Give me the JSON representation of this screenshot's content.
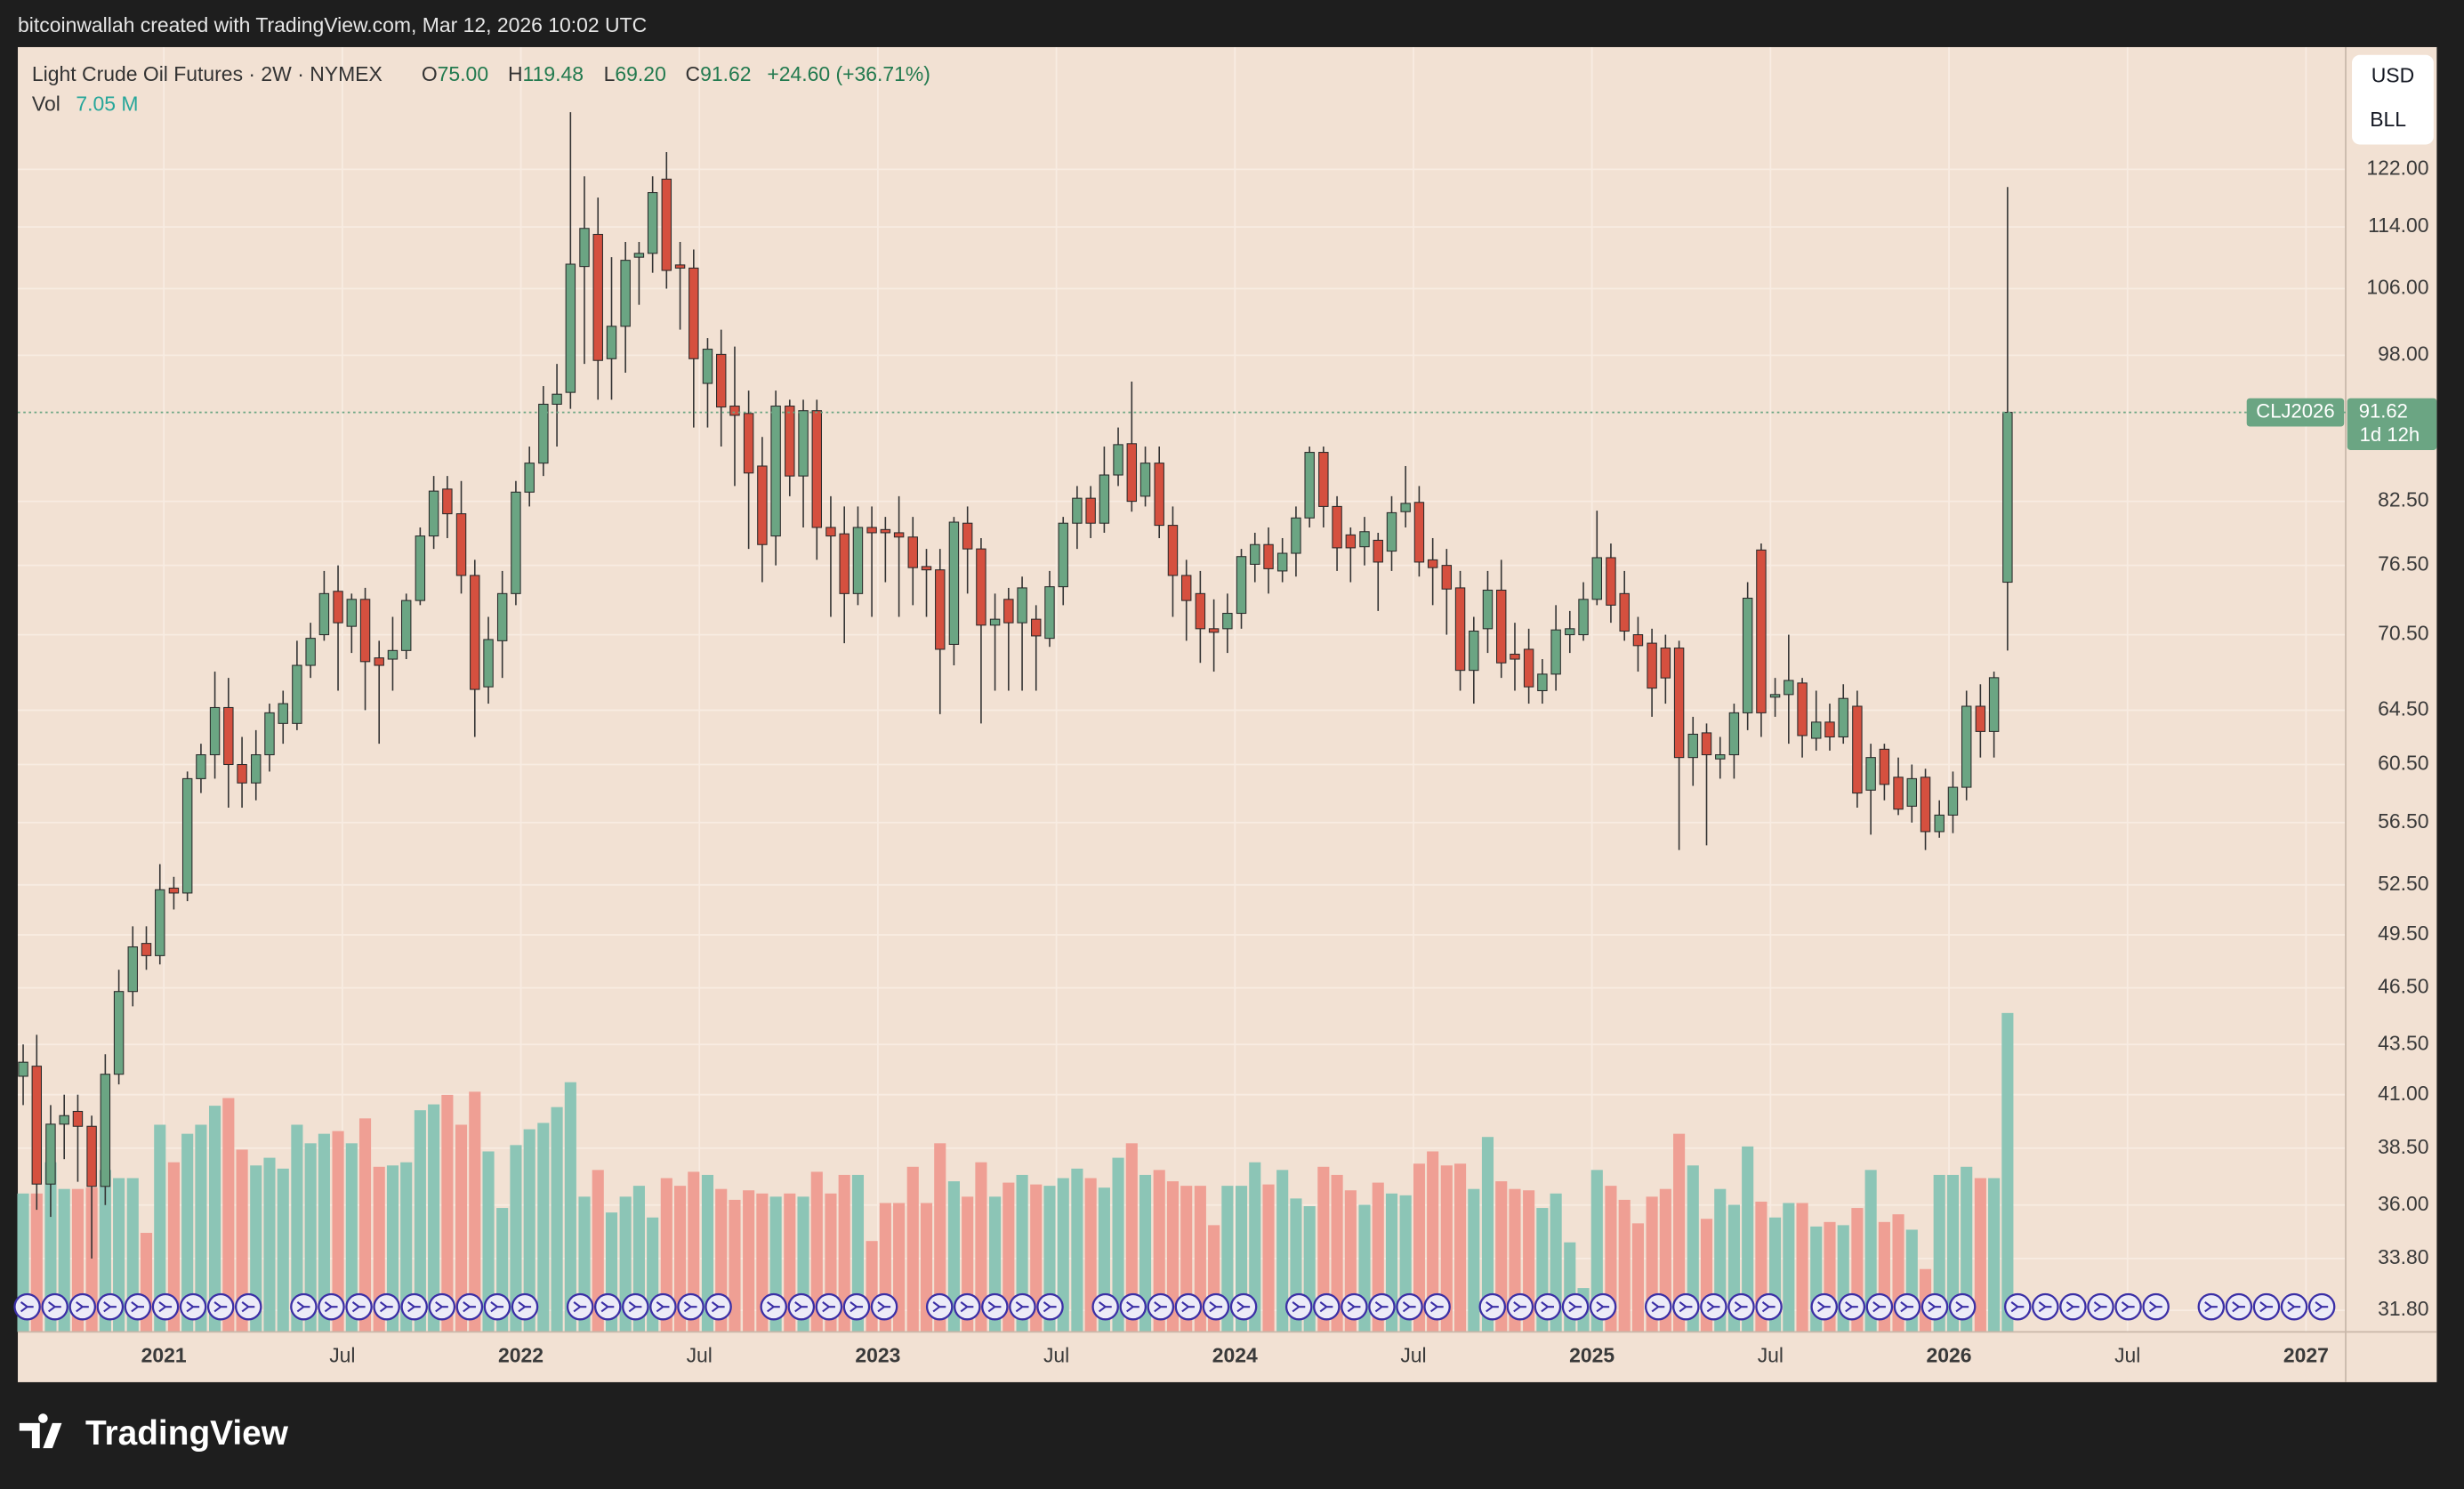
{
  "header": {
    "caption": "bitcoinwallah created with TradingView.com, Mar 12, 2026 10:02 UTC"
  },
  "footer": {
    "brand": "TradingView"
  },
  "currency_box": {
    "currency": "USD",
    "unit": "BLL"
  },
  "chart_data": {
    "type": "candlestick",
    "title": "Light Crude Oil Futures · 2W · NYMEX",
    "legend_items": [
      {
        "key": "O",
        "value": "75.00"
      },
      {
        "key": "H",
        "value": "119.48"
      },
      {
        "key": "L",
        "value": "69.20"
      },
      {
        "key": "C",
        "value": "91.62"
      }
    ],
    "change": "+24.60 (+36.71%)",
    "volume_key": "Vol",
    "volume_value": "7.05 M",
    "ticker": "CLJ2026",
    "countdown": "1d 12h",
    "log_scale": true,
    "grid": true,
    "up_color": "#6ba583",
    "down_color": "#d5503f",
    "wick_color": "#333333",
    "volume_up_color": "#8cc5b6",
    "volume_down_color": "#ef9f94",
    "xlim": [
      2020.591,
      2027.111
    ],
    "xticks": [
      2021,
      {
        "value": 2021.5,
        "label": "Jul"
      },
      2022,
      {
        "value": 2022.5,
        "label": "Jul"
      },
      2023,
      {
        "value": 2023.5,
        "label": "Jul"
      },
      2024,
      {
        "value": 2024.5,
        "label": "Jul"
      },
      2025,
      {
        "value": 2025.5,
        "label": "Jul"
      },
      2026,
      {
        "value": 2026.5,
        "label": "Jul"
      },
      2027
    ],
    "ylim": [
      31.0,
      140.9
    ],
    "yticks": [
      {
        "value": 122,
        "label": "122.00"
      },
      {
        "value": 114,
        "label": "114.00"
      },
      {
        "value": 106,
        "label": "106.00"
      },
      {
        "value": 98,
        "label": "98.00"
      },
      {
        "value": 82.5,
        "label": "82.50"
      },
      {
        "value": 76.5,
        "label": "76.50"
      },
      {
        "value": 70.5,
        "label": "70.50"
      },
      {
        "value": 64.5,
        "label": "64.50"
      },
      {
        "value": 60.5,
        "label": "60.50"
      },
      {
        "value": 56.5,
        "label": "56.50"
      },
      {
        "value": 52.5,
        "label": "52.50"
      },
      {
        "value": 49.5,
        "label": "49.50"
      },
      {
        "value": 46.5,
        "label": "46.50"
      },
      {
        "value": 43.5,
        "label": "43.50"
      },
      {
        "value": 41,
        "label": "41.00"
      },
      {
        "value": 38.5,
        "label": "38.50"
      },
      {
        "value": 36,
        "label": "36.00"
      },
      {
        "value": 33.8,
        "label": "33.80"
      },
      {
        "value": 31.8,
        "label": "31.80"
      }
    ],
    "y2lim": [
      0,
      28.4
    ],
    "x": [
      2020.606,
      2020.644,
      2020.683,
      2020.721,
      2020.759,
      2020.798,
      2020.836,
      2020.874,
      2020.913,
      2020.951,
      2020.989,
      2021.028,
      2021.066,
      2021.104,
      2021.143,
      2021.181,
      2021.219,
      2021.258,
      2021.296,
      2021.334,
      2021.373,
      2021.411,
      2021.449,
      2021.488,
      2021.526,
      2021.564,
      2021.603,
      2021.641,
      2021.679,
      2021.718,
      2021.756,
      2021.794,
      2021.833,
      2021.871,
      2021.909,
      2021.948,
      2021.986,
      2022.024,
      2022.063,
      2022.101,
      2022.139,
      2022.178,
      2022.216,
      2022.254,
      2022.293,
      2022.331,
      2022.369,
      2022.408,
      2022.446,
      2022.484,
      2022.523,
      2022.561,
      2022.599,
      2022.638,
      2022.676,
      2022.714,
      2022.753,
      2022.791,
      2022.829,
      2022.868,
      2022.906,
      2022.944,
      2022.983,
      2023.021,
      2023.059,
      2023.098,
      2023.136,
      2023.174,
      2023.213,
      2023.251,
      2023.289,
      2023.328,
      2023.366,
      2023.404,
      2023.443,
      2023.481,
      2023.519,
      2023.558,
      2023.596,
      2023.634,
      2023.673,
      2023.711,
      2023.749,
      2023.788,
      2023.826,
      2023.864,
      2023.903,
      2023.941,
      2023.979,
      2024.018,
      2024.056,
      2024.094,
      2024.133,
      2024.171,
      2024.209,
      2024.248,
      2024.286,
      2024.324,
      2024.363,
      2024.401,
      2024.439,
      2024.478,
      2024.516,
      2024.554,
      2024.593,
      2024.631,
      2024.669,
      2024.708,
      2024.746,
      2024.784,
      2024.823,
      2024.861,
      2024.899,
      2024.938,
      2024.976,
      2025.014,
      2025.053,
      2025.091,
      2025.129,
      2025.168,
      2025.206,
      2025.244,
      2025.283,
      2025.321,
      2025.359,
      2025.398,
      2025.436,
      2025.474,
      2025.513,
      2025.551,
      2025.589,
      2025.628,
      2025.666,
      2025.704,
      2025.743,
      2025.781,
      2025.819,
      2025.858,
      2025.896,
      2025.934,
      2025.973,
      2026.011,
      2026.049,
      2026.088,
      2026.126,
      2026.164
    ],
    "open": [
      41.9,
      42.4,
      36.9,
      39.6,
      40.2,
      39.5,
      36.8,
      42,
      46.3,
      49,
      48.3,
      52.3,
      52,
      59.5,
      61.2,
      64.7,
      60.5,
      59.2,
      61.2,
      63.5,
      63.5,
      68,
      70.5,
      74.2,
      71.2,
      73.5,
      68.6,
      68.5,
      69.2,
      73.4,
      79.2,
      83.7,
      81.3,
      75.6,
      66.3,
      70,
      74,
      83.4,
      86.3,
      92.5,
      93.8,
      108.8,
      113,
      97.6,
      101.4,
      110,
      110.5,
      120.6,
      109,
      108.6,
      94.8,
      98.1,
      92.3,
      91.5,
      86,
      79.2,
      92.3,
      85,
      91.8,
      80,
      79.4,
      74,
      80,
      79.8,
      79.5,
      79.1,
      76.4,
      76.1,
      69.7,
      80.4,
      78,
      71.3,
      73.5,
      71.5,
      71.8,
      70.2,
      74.6,
      80.4,
      82.8,
      80.4,
      85.1,
      88.3,
      83,
      86.3,
      80.2,
      75.6,
      74,
      71,
      71,
      72.3,
      76.6,
      78.4,
      76,
      77.6,
      80.9,
      87.4,
      82,
      79.3,
      78.2,
      78.8,
      77.8,
      81.5,
      82.4,
      77,
      76.5,
      74.5,
      67.6,
      71,
      74.3,
      68.9,
      69.3,
      66,
      67.3,
      70.5,
      70.5,
      73.5,
      77.2,
      74,
      70.5,
      69.8,
      69.4,
      69.4,
      61,
      62.8,
      60.9,
      61.2,
      64.3,
      77.9,
      65.5,
      65.7,
      66.6,
      62.4,
      63.6,
      62.5,
      64.8,
      58.7,
      61.6,
      59.6,
      57.6,
      59.6,
      55.9,
      57,
      58.9,
      64.8,
      62.9,
      75
    ],
    "high": [
      43.5,
      44,
      40.5,
      41,
      41,
      40,
      43,
      47.5,
      50,
      50,
      53.8,
      53,
      60,
      62,
      67.5,
      67,
      62.5,
      63,
      65,
      66,
      70,
      71.5,
      76,
      76.5,
      74,
      74.5,
      70,
      72,
      74,
      80,
      85,
      85,
      84.5,
      77,
      72,
      76,
      84.5,
      88,
      94.5,
      97,
      130.5,
      121,
      118,
      110,
      112,
      112,
      121,
      124.5,
      112,
      111,
      100,
      101,
      99,
      94,
      89,
      94,
      93,
      93,
      93,
      83,
      82,
      82,
      82,
      81,
      83,
      81,
      78,
      78,
      81,
      82,
      79,
      74,
      74.5,
      75.5,
      73,
      76,
      81,
      84,
      84,
      88,
      90,
      95,
      88,
      88,
      82,
      77,
      76,
      73.5,
      74,
      78,
      79.5,
      80,
      79,
      82,
      88,
      88,
      83,
      80,
      81,
      79.5,
      83,
      86,
      84,
      79,
      78,
      76,
      72,
      76,
      77,
      71.5,
      71,
      68.5,
      73,
      72.5,
      75,
      81.6,
      78.5,
      76,
      72,
      71,
      70.5,
      70,
      64,
      63.5,
      62.5,
      65,
      75,
      78.5,
      67,
      70.5,
      67,
      66,
      65,
      66.5,
      66,
      62,
      62,
      61,
      60.5,
      60.2,
      58,
      60,
      66,
      66.5,
      67.5,
      119.48
    ],
    "low": [
      40.5,
      35.8,
      35.5,
      38,
      37,
      33.8,
      36,
      41.5,
      45.5,
      47.5,
      47.8,
      51,
      51.5,
      58.5,
      59.5,
      57.5,
      57.5,
      58,
      60,
      62,
      63,
      67,
      70,
      66,
      69,
      64.5,
      62,
      66,
      68.5,
      73,
      78,
      79,
      74,
      62.5,
      65,
      67,
      73,
      82,
      85,
      88,
      92,
      97,
      93,
      93,
      96,
      104,
      108,
      106,
      101,
      90,
      90,
      88,
      84,
      78,
      75,
      76.5,
      83,
      80,
      77,
      72,
      69.8,
      73,
      72,
      75,
      72,
      73,
      72,
      64.2,
      68,
      74,
      63.5,
      66,
      66,
      66,
      66,
      69.5,
      73,
      78,
      79,
      79.5,
      84,
      81.5,
      82,
      79,
      72,
      70,
      68.2,
      67.5,
      69,
      71,
      75,
      74,
      75,
      75.5,
      80,
      80,
      76,
      75,
      76.5,
      72.5,
      76,
      80,
      75.5,
      73,
      70.5,
      66,
      65,
      69,
      67,
      66,
      65,
      65,
      66,
      69,
      70,
      73,
      71.5,
      70,
      67.5,
      64,
      65,
      54.7,
      59,
      55,
      59.5,
      59.5,
      63,
      62.5,
      64,
      62,
      61,
      61.5,
      61.5,
      62,
      57.5,
      55.7,
      58,
      57,
      56.5,
      54.7,
      55.5,
      55.8,
      58,
      61,
      61,
      69.2
    ],
    "close": [
      42.6,
      36.9,
      39.6,
      40,
      39.5,
      36.8,
      42,
      46.3,
      48.8,
      48.3,
      52.2,
      52,
      59.5,
      61.2,
      64.7,
      60.5,
      59.2,
      61.2,
      64.3,
      65,
      68,
      70.2,
      74,
      71.5,
      73.5,
      68.3,
      68,
      69.2,
      73.4,
      79.2,
      83.5,
      81.3,
      75.6,
      66.1,
      70.1,
      74,
      83.4,
      86.3,
      92.5,
      93.6,
      109.1,
      113.8,
      97.4,
      101.4,
      109.6,
      110.5,
      118.7,
      108.3,
      108.6,
      97.6,
      98.7,
      92.2,
      91.3,
      85.3,
      78.4,
      92.3,
      85,
      91.8,
      80,
      79.2,
      74,
      80,
      79.5,
      79.5,
      79.1,
      76.3,
      76.1,
      69.3,
      80.5,
      78,
      71.3,
      71.8,
      71.5,
      74.5,
      70.4,
      74.6,
      80.4,
      82.8,
      80.4,
      85.1,
      88.2,
      82.5,
      86.3,
      80.2,
      75.6,
      73.4,
      71,
      70.7,
      72.3,
      77.3,
      78.4,
      76.2,
      77.6,
      80.9,
      87.4,
      82,
      78.1,
      78.1,
      79.6,
      76.8,
      81.4,
      82.3,
      76.8,
      76.3,
      74.4,
      67.6,
      70.8,
      74.3,
      68.2,
      68.5,
      66.3,
      67.3,
      70.9,
      71,
      73.5,
      77.2,
      73,
      70.8,
      69.6,
      66.2,
      67,
      61,
      62.7,
      61.2,
      61.2,
      64.3,
      73.6,
      64.3,
      65.7,
      66.8,
      62.6,
      63.6,
      62.5,
      65.4,
      58.5,
      61,
      59.1,
      57.4,
      59.5,
      55.9,
      57,
      58.9,
      64.8,
      62.9,
      67.02,
      91.62
    ],
    "volume": [
      3.06,
      3.06,
      3.75,
      3.16,
      3.16,
      3.19,
      3.58,
      3.4,
      3.4,
      2.19,
      4.58,
      3.75,
      4.38,
      4.58,
      5.0,
      5.17,
      4.03,
      3.68,
      3.85,
      3.61,
      4.58,
      4.17,
      4.38,
      4.44,
      4.17,
      4.72,
      3.65,
      3.68,
      3.75,
      4.9,
      5.03,
      5.24,
      4.58,
      5.31,
      3.99,
      2.74,
      4.13,
      4.48,
      4.62,
      4.97,
      5.52,
      2.99,
      3.58,
      2.64,
      2.99,
      3.23,
      2.53,
      3.4,
      3.23,
      3.54,
      3.47,
      3.16,
      2.92,
      3.13,
      3.06,
      2.99,
      3.06,
      2.99,
      3.54,
      3.06,
      3.47,
      3.47,
      2.01,
      2.85,
      2.85,
      3.65,
      2.85,
      4.17,
      3.33,
      2.99,
      3.75,
      2.99,
      3.3,
      3.47,
      3.26,
      3.23,
      3.4,
      3.61,
      3.4,
      3.19,
      3.85,
      4.17,
      3.47,
      3.58,
      3.33,
      3.23,
      3.23,
      2.36,
      3.23,
      3.23,
      3.75,
      3.26,
      3.58,
      2.95,
      2.78,
      3.65,
      3.47,
      3.13,
      2.81,
      3.3,
      3.06,
      3.02,
      3.72,
      3.99,
      3.68,
      3.72,
      3.16,
      4.31,
      3.33,
      3.16,
      3.13,
      2.74,
      3.06,
      1.98,
      0.97,
      3.58,
      3.23,
      2.92,
      2.4,
      2.99,
      3.16,
      4.38,
      3.68,
      2.5,
      3.16,
      2.81,
      4.1,
      2.88,
      2.53,
      2.85,
      2.85,
      2.33,
      2.43,
      2.36,
      2.74,
      3.58,
      2.43,
      2.6,
      2.26,
      1.39,
      3.47,
      3.47,
      3.65,
      3.4,
      3.4,
      7.05
    ]
  }
}
